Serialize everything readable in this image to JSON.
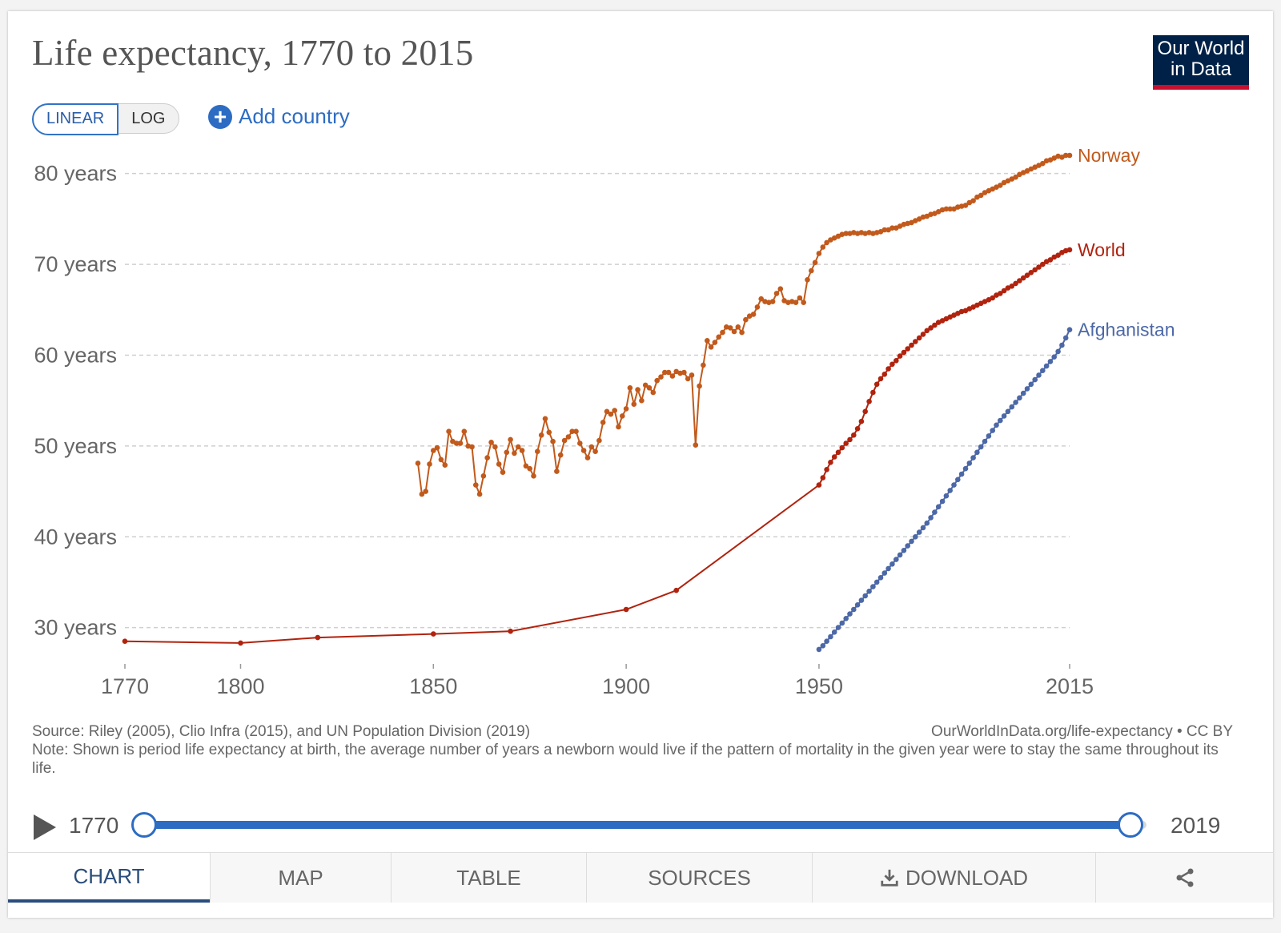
{
  "header": {
    "title": "Life expectancy, 1770 to 2015",
    "logo_line1": "Our World",
    "logo_line2": "in Data"
  },
  "controls": {
    "linear_label": "LINEAR",
    "log_label": "LOG",
    "add_country_label": "Add country"
  },
  "notes": {
    "source": "Source: Riley (2005), Clio Infra (2015), and UN Population Division (2019)",
    "url": "OurWorldInData.org/life-expectancy • CC BY",
    "note": "Note: Shown is period life expectancy at birth, the average number of years a newborn would live if the pattern of mortality in the given year were to stay the same throughout its life."
  },
  "timeline": {
    "start_label": "1770",
    "end_label": "2019",
    "start_value": 1770,
    "end_value": 2015,
    "range": [
      1770,
      2019
    ]
  },
  "tabs": [
    {
      "label": "CHART",
      "icon": ""
    },
    {
      "label": "MAP",
      "icon": ""
    },
    {
      "label": "TABLE",
      "icon": ""
    },
    {
      "label": "SOURCES",
      "icon": ""
    },
    {
      "label": "DOWNLOAD",
      "icon": "download-icon"
    },
    {
      "label": "",
      "icon": "share-icon"
    }
  ],
  "colors": {
    "norway": "#c15a1c",
    "world": "#b0230e",
    "afghanistan": "#4c68a6",
    "accent": "#2d6cc3"
  },
  "chart_data": {
    "type": "line",
    "title": "Life expectancy, 1770 to 2015",
    "xlim": [
      1770,
      2015
    ],
    "ylim": [
      26,
      82
    ],
    "x_ticks": [
      {
        "value": 1770,
        "label": "1770"
      },
      {
        "value": 1800,
        "label": "1800"
      },
      {
        "value": 1850,
        "label": "1850"
      },
      {
        "value": 1900,
        "label": "1900"
      },
      {
        "value": 1950,
        "label": "1950"
      },
      {
        "value": 2015,
        "label": "2015"
      }
    ],
    "y_ticks": [
      {
        "value": 30,
        "label": "30 years"
      },
      {
        "value": 40,
        "label": "40 years"
      },
      {
        "value": 50,
        "label": "50 years"
      },
      {
        "value": 60,
        "label": "60 years"
      },
      {
        "value": 70,
        "label": "70 years"
      },
      {
        "value": 80,
        "label": "80 years"
      }
    ],
    "grid": "horizontal-dashed",
    "legend": "inline-right",
    "series": [
      {
        "name": "Norway",
        "key": "norway",
        "x": [
          1846,
          1847,
          1848,
          1849,
          1850,
          1851,
          1852,
          1853,
          1854,
          1855,
          1856,
          1857,
          1858,
          1859,
          1860,
          1861,
          1862,
          1863,
          1864,
          1865,
          1866,
          1867,
          1868,
          1869,
          1870,
          1871,
          1872,
          1873,
          1874,
          1875,
          1876,
          1877,
          1878,
          1879,
          1880,
          1881,
          1882,
          1883,
          1884,
          1885,
          1886,
          1887,
          1888,
          1889,
          1890,
          1891,
          1892,
          1893,
          1894,
          1895,
          1896,
          1897,
          1898,
          1899,
          1900,
          1901,
          1902,
          1903,
          1904,
          1905,
          1906,
          1907,
          1908,
          1909,
          1910,
          1911,
          1912,
          1913,
          1914,
          1915,
          1916,
          1917,
          1918,
          1919,
          1920,
          1921,
          1922,
          1923,
          1924,
          1925,
          1926,
          1927,
          1928,
          1929,
          1930,
          1931,
          1932,
          1933,
          1934,
          1935,
          1936,
          1937,
          1938,
          1939,
          1940,
          1941,
          1942,
          1943,
          1944,
          1945,
          1946,
          1947,
          1948,
          1949,
          1950,
          1951,
          1952,
          1953,
          1954,
          1955,
          1956,
          1957,
          1958,
          1959,
          1960,
          1961,
          1962,
          1963,
          1964,
          1965,
          1966,
          1967,
          1968,
          1969,
          1970,
          1971,
          1972,
          1973,
          1974,
          1975,
          1976,
          1977,
          1978,
          1979,
          1980,
          1981,
          1982,
          1983,
          1984,
          1985,
          1986,
          1987,
          1988,
          1989,
          1990,
          1991,
          1992,
          1993,
          1994,
          1995,
          1996,
          1997,
          1998,
          1999,
          2000,
          2001,
          2002,
          2003,
          2004,
          2005,
          2006,
          2007,
          2008,
          2009,
          2010,
          2011,
          2012,
          2013,
          2014,
          2015
        ],
        "y": [
          48.1,
          44.7,
          45.0,
          48.0,
          49.5,
          49.8,
          48.5,
          47.9,
          51.6,
          50.5,
          50.3,
          50.3,
          51.6,
          50.0,
          49.9,
          45.7,
          44.7,
          46.7,
          48.7,
          50.4,
          49.9,
          48.0,
          47.1,
          49.3,
          50.7,
          49.2,
          49.9,
          49.5,
          47.8,
          47.5,
          46.7,
          49.4,
          51.2,
          53.0,
          51.5,
          50.5,
          47.2,
          49.0,
          50.6,
          51.0,
          51.6,
          51.6,
          50.3,
          49.5,
          48.7,
          49.9,
          49.4,
          50.6,
          52.6,
          53.8,
          53.5,
          53.9,
          52.1,
          53.3,
          54.1,
          56.4,
          54.6,
          56.2,
          55.0,
          56.7,
          56.4,
          55.9,
          57.2,
          57.6,
          58.1,
          58.1,
          57.7,
          58.2,
          58.0,
          58.1,
          57.4,
          57.8,
          50.1,
          56.6,
          58.9,
          61.6,
          60.9,
          61.4,
          62.0,
          62.5,
          63.1,
          63.0,
          62.6,
          63.1,
          62.5,
          63.9,
          64.3,
          64.5,
          65.3,
          66.2,
          65.9,
          65.8,
          65.9,
          66.8,
          67.3,
          66.0,
          65.8,
          65.9,
          65.8,
          66.3,
          65.8,
          68.3,
          69.3,
          70.2,
          71.2,
          71.9,
          72.4,
          72.7,
          72.9,
          73.1,
          73.3,
          73.4,
          73.4,
          73.5,
          73.4,
          73.5,
          73.4,
          73.5,
          73.4,
          73.5,
          73.6,
          73.8,
          73.8,
          74.0,
          74.0,
          74.2,
          74.4,
          74.5,
          74.6,
          74.8,
          75.0,
          75.2,
          75.3,
          75.5,
          75.6,
          75.8,
          76.0,
          76.1,
          76.1,
          76.1,
          76.3,
          76.4,
          76.5,
          76.8,
          77.0,
          77.4,
          77.6,
          77.9,
          78.1,
          78.3,
          78.5,
          78.7,
          79.0,
          79.2,
          79.4,
          79.6,
          79.9,
          80.1,
          80.3,
          80.5,
          80.7,
          80.9,
          81.1,
          81.4,
          81.5,
          81.7,
          81.9,
          81.8,
          82.0,
          82.0
        ]
      },
      {
        "name": "World",
        "key": "world",
        "x": [
          1770,
          1800,
          1820,
          1850,
          1870,
          1900,
          1913,
          1950,
          1951,
          1952,
          1953,
          1954,
          1955,
          1956,
          1957,
          1958,
          1959,
          1960,
          1961,
          1962,
          1963,
          1964,
          1965,
          1966,
          1967,
          1968,
          1969,
          1970,
          1971,
          1972,
          1973,
          1974,
          1975,
          1976,
          1977,
          1978,
          1979,
          1980,
          1981,
          1982,
          1983,
          1984,
          1985,
          1986,
          1987,
          1988,
          1989,
          1990,
          1991,
          1992,
          1993,
          1994,
          1995,
          1996,
          1997,
          1998,
          1999,
          2000,
          2001,
          2002,
          2003,
          2004,
          2005,
          2006,
          2007,
          2008,
          2009,
          2010,
          2011,
          2012,
          2013,
          2014,
          2015
        ],
        "y": [
          28.5,
          28.3,
          28.9,
          29.3,
          29.6,
          32.0,
          34.1,
          45.7,
          46.5,
          47.4,
          48.2,
          48.8,
          49.3,
          49.8,
          50.3,
          50.7,
          51.2,
          51.9,
          52.7,
          53.8,
          54.9,
          55.9,
          56.8,
          57.4,
          57.9,
          58.5,
          59.0,
          59.4,
          59.9,
          60.3,
          60.7,
          61.1,
          61.5,
          61.9,
          62.3,
          62.7,
          63.0,
          63.3,
          63.6,
          63.8,
          64.0,
          64.2,
          64.4,
          64.6,
          64.8,
          64.9,
          65.1,
          65.3,
          65.5,
          65.7,
          65.9,
          66.1,
          66.3,
          66.6,
          66.8,
          67.1,
          67.4,
          67.6,
          67.9,
          68.2,
          68.5,
          68.8,
          69.1,
          69.4,
          69.7,
          70.0,
          70.3,
          70.5,
          70.8,
          71.0,
          71.3,
          71.5,
          71.6
        ]
      },
      {
        "name": "Afghanistan",
        "key": "afghanistan",
        "x": [
          1950,
          1951,
          1952,
          1953,
          1954,
          1955,
          1956,
          1957,
          1958,
          1959,
          1960,
          1961,
          1962,
          1963,
          1964,
          1965,
          1966,
          1967,
          1968,
          1969,
          1970,
          1971,
          1972,
          1973,
          1974,
          1975,
          1976,
          1977,
          1978,
          1979,
          1980,
          1981,
          1982,
          1983,
          1984,
          1985,
          1986,
          1987,
          1988,
          1989,
          1990,
          1991,
          1992,
          1993,
          1994,
          1995,
          1996,
          1997,
          1998,
          1999,
          2000,
          2001,
          2002,
          2003,
          2004,
          2005,
          2006,
          2007,
          2008,
          2009,
          2010,
          2011,
          2012,
          2013,
          2014,
          2015
        ],
        "y": [
          27.6,
          28.0,
          28.5,
          29.0,
          29.5,
          30.0,
          30.5,
          31.0,
          31.5,
          32.0,
          32.5,
          33.0,
          33.5,
          34.0,
          34.5,
          35.0,
          35.5,
          36.0,
          36.5,
          37.0,
          37.5,
          38.0,
          38.5,
          39.0,
          39.5,
          40.0,
          40.5,
          41.0,
          41.5,
          42.1,
          42.7,
          43.3,
          43.9,
          44.5,
          45.1,
          45.7,
          46.3,
          46.9,
          47.5,
          48.1,
          48.7,
          49.3,
          49.9,
          50.5,
          51.1,
          51.7,
          52.3,
          52.8,
          53.3,
          53.8,
          54.3,
          54.8,
          55.3,
          55.8,
          56.3,
          56.8,
          57.3,
          57.8,
          58.3,
          58.8,
          59.3,
          59.8,
          60.4,
          61.1,
          61.9,
          62.8
        ]
      }
    ]
  }
}
